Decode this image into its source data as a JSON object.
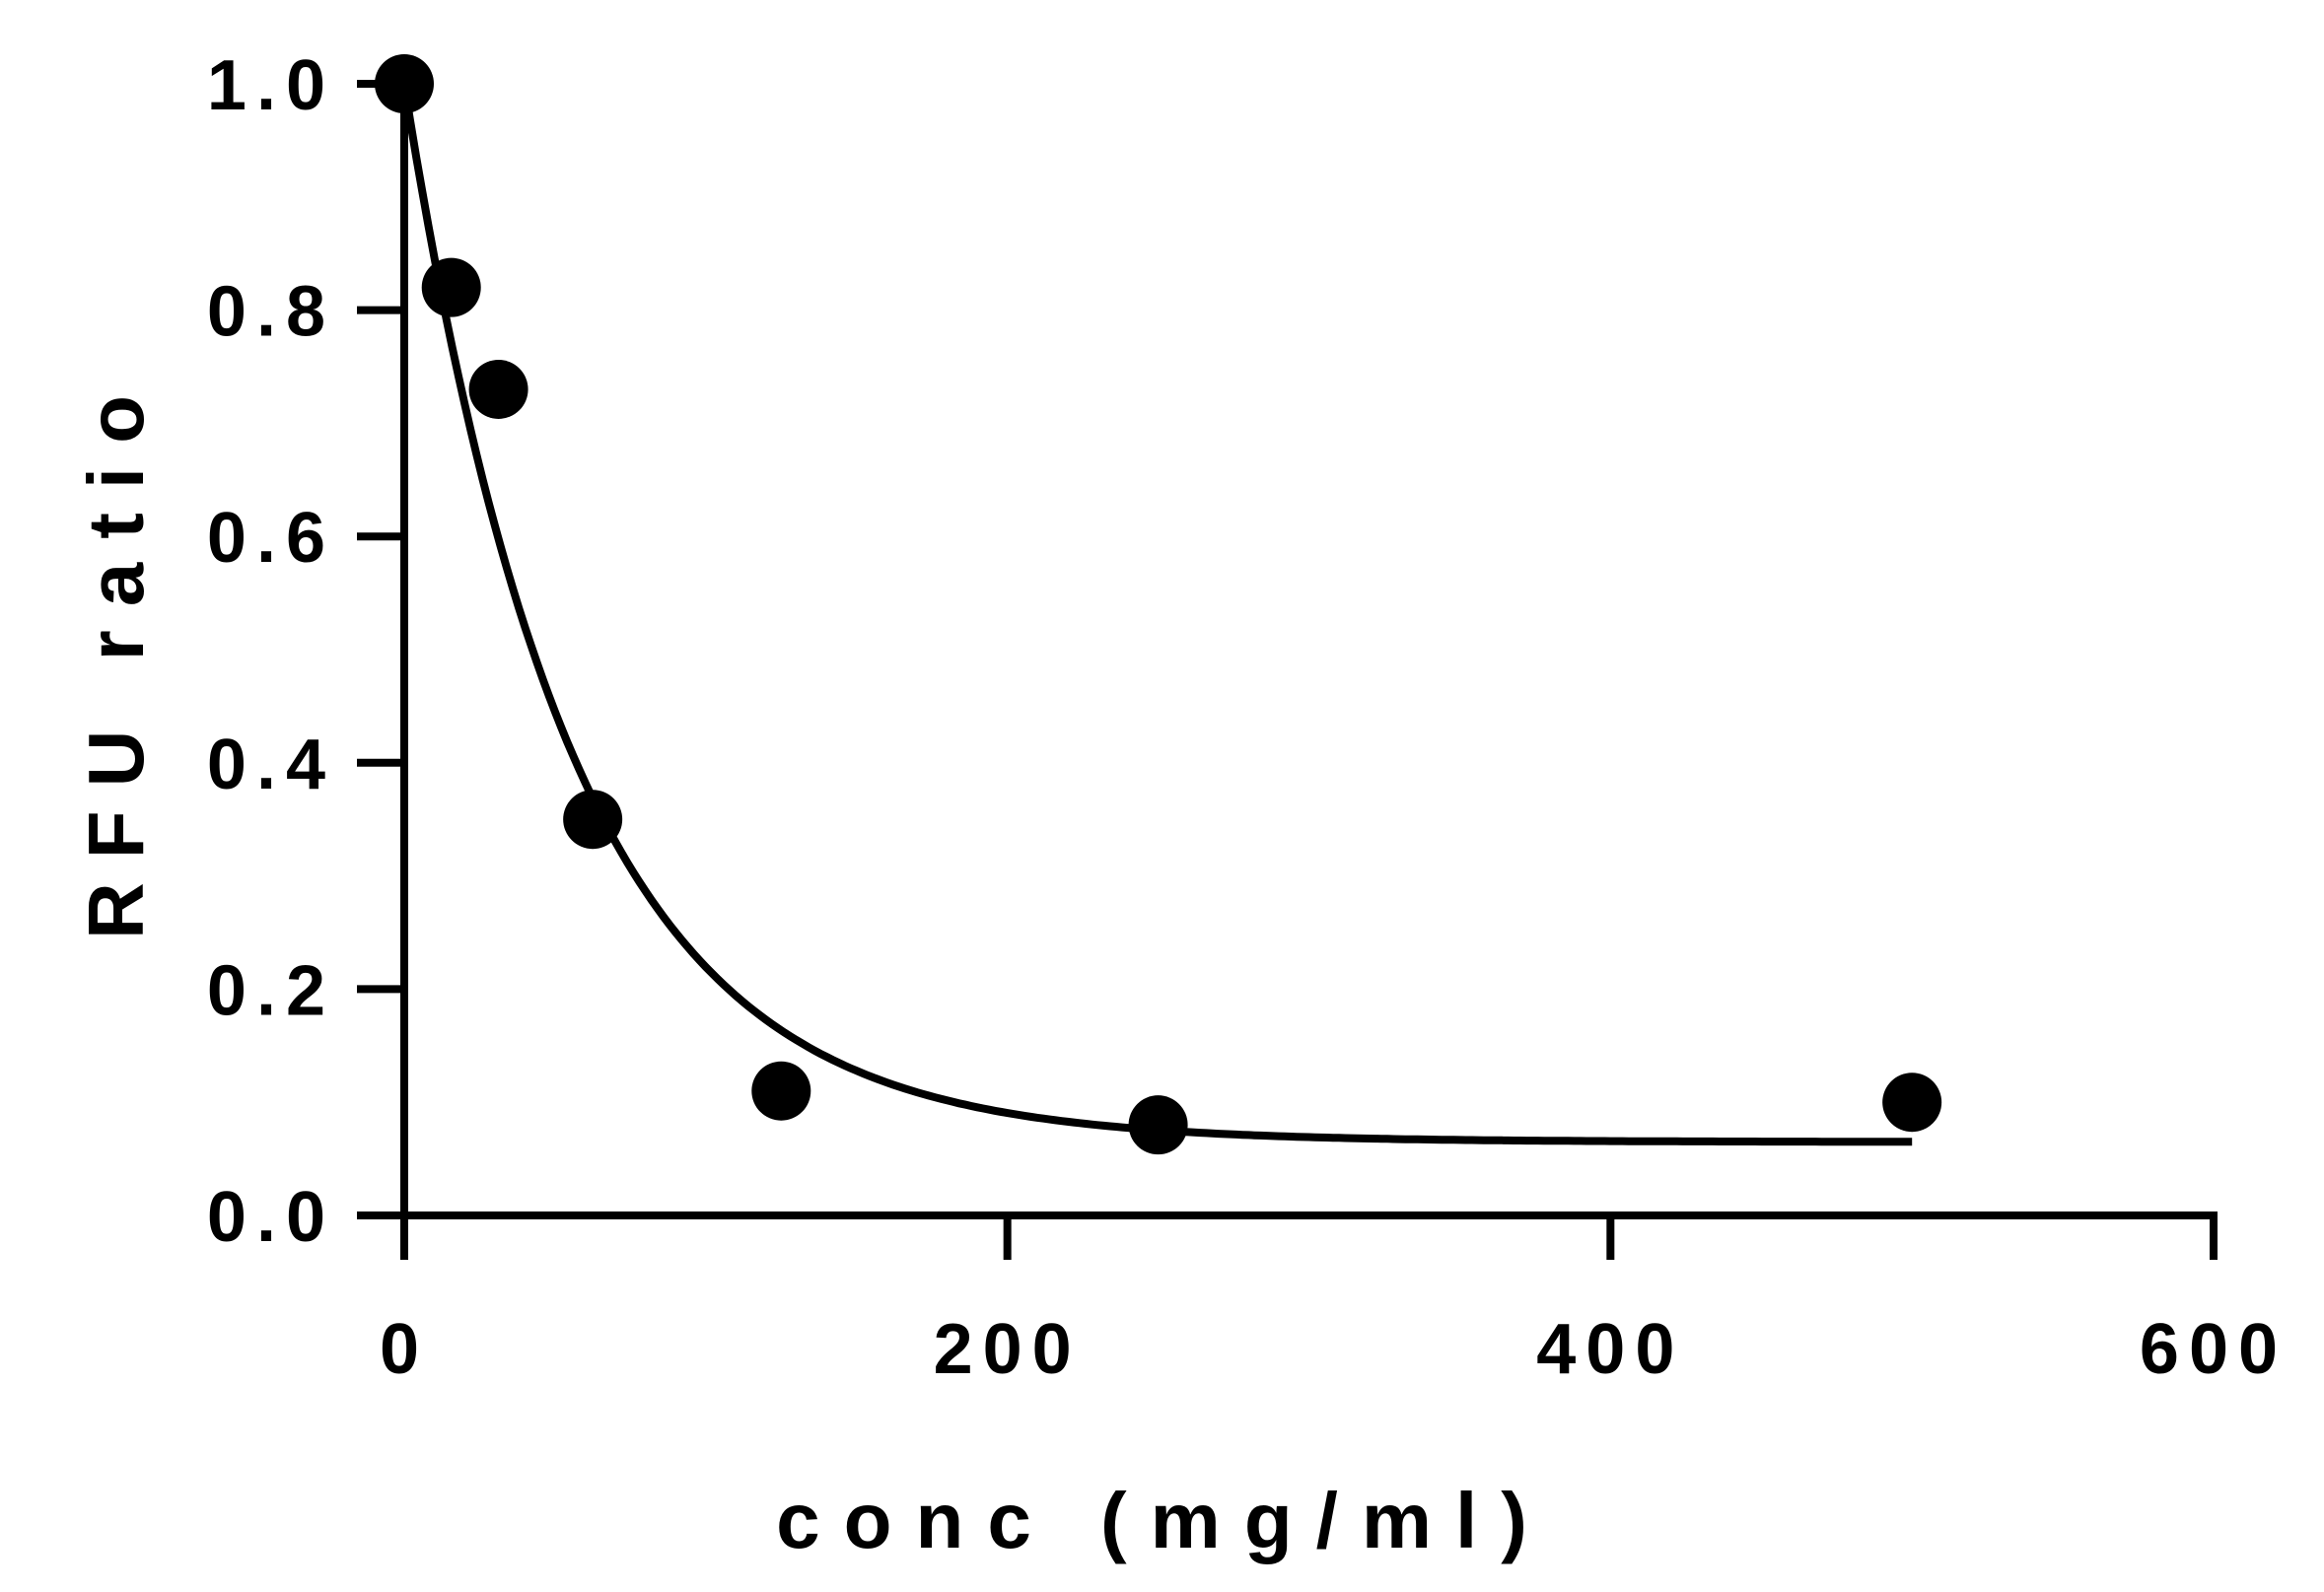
{
  "chart_data": {
    "type": "scatter",
    "title": "",
    "xlabel": "conc (mg/ml)",
    "ylabel": "RFU ratio",
    "xlim": [
      0,
      600
    ],
    "ylim": [
      0,
      1.0
    ],
    "x_ticks": [
      0,
      200,
      400,
      600
    ],
    "y_ticks": [
      0,
      0.2,
      0.4,
      0.6,
      0.8,
      1.0
    ],
    "x_tick_labels": [
      "0",
      "200",
      "400",
      "600"
    ],
    "y_tick_labels": [
      "0.0",
      "0.2",
      "0.4",
      "0.6",
      "0.8",
      "1.0"
    ],
    "grid": false,
    "legend": "none",
    "series": [
      {
        "kind": "points",
        "x": [
          0,
          15.6,
          31.25,
          62.5,
          125,
          250,
          500
        ],
        "y": [
          1.0,
          0.82,
          0.73,
          0.35,
          0.11,
          0.08,
          0.1
        ]
      },
      {
        "kind": "fit-curve",
        "model": "one-phase exponential decay",
        "y0": 1.0,
        "plateau": 0.065,
        "k": 0.018,
        "x_range": [
          0,
          500
        ]
      }
    ],
    "colors": {
      "points": "#000000",
      "curve": "#000000",
      "axes": "#000000"
    }
  }
}
